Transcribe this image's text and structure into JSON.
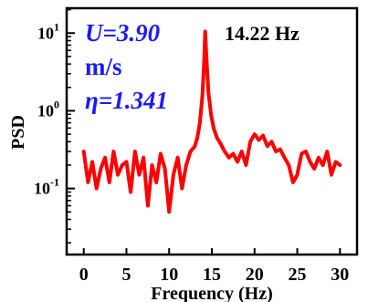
{
  "chart_data": {
    "type": "line",
    "xlabel": "Frequency (Hz)",
    "ylabel": "PSD",
    "xlim": [
      -2,
      32
    ],
    "ylim_log10": [
      -1.85,
      1.32
    ],
    "y_scale": "log",
    "x_ticks": [
      {
        "value": 0,
        "label": "0"
      },
      {
        "value": 5,
        "label": "5"
      },
      {
        "value": 10,
        "label": "10"
      },
      {
        "value": 15,
        "label": "15"
      },
      {
        "value": 20,
        "label": "20"
      },
      {
        "value": 25,
        "label": "25"
      },
      {
        "value": 30,
        "label": "30"
      }
    ],
    "y_ticks": [
      {
        "exp": 1,
        "base": "10",
        "sup": "1"
      },
      {
        "exp": 0,
        "base": "10",
        "sup": "0"
      },
      {
        "exp": -1,
        "base": "10",
        "sup": "-1"
      }
    ],
    "line_color": "#ff0000",
    "annotations": {
      "velocity_line": "U=3.90",
      "velocity_unit": "m/s",
      "eta_line": "η=1.341",
      "peak_label": "14.22 Hz"
    },
    "series": [
      {
        "x": [
          0,
          0.5,
          1,
          1.5,
          2,
          2.5,
          3,
          3.5,
          4,
          4.5,
          5,
          5.5,
          6,
          6.5,
          7,
          7.5,
          8,
          8.5,
          9,
          9.5,
          10,
          10.5,
          11,
          11.5,
          12,
          12.5,
          13,
          13.3,
          13.6,
          13.9,
          14.1,
          14.22,
          14.4,
          14.6,
          14.9,
          15.2,
          15.6,
          16,
          16.5,
          17,
          17.5,
          18,
          18.5,
          19,
          19.5,
          20,
          20.5,
          21,
          21.5,
          22,
          22.5,
          23,
          23.5,
          24,
          24.5,
          25,
          25.5,
          26,
          26.5,
          27,
          27.5,
          28,
          28.5,
          29,
          29.5,
          30
        ],
        "y": [
          0.3,
          0.12,
          0.22,
          0.1,
          0.18,
          0.25,
          0.12,
          0.3,
          0.15,
          0.2,
          0.22,
          0.09,
          0.3,
          0.15,
          0.25,
          0.06,
          0.2,
          0.12,
          0.28,
          0.18,
          0.05,
          0.15,
          0.25,
          0.1,
          0.2,
          0.3,
          0.35,
          0.45,
          0.7,
          1.6,
          4.5,
          10.5,
          4.2,
          1.7,
          0.9,
          0.6,
          0.45,
          0.38,
          0.3,
          0.25,
          0.28,
          0.22,
          0.3,
          0.2,
          0.4,
          0.5,
          0.42,
          0.48,
          0.35,
          0.4,
          0.3,
          0.32,
          0.25,
          0.2,
          0.12,
          0.15,
          0.28,
          0.3,
          0.22,
          0.18,
          0.25,
          0.2,
          0.3,
          0.15,
          0.22,
          0.2
        ]
      }
    ]
  }
}
